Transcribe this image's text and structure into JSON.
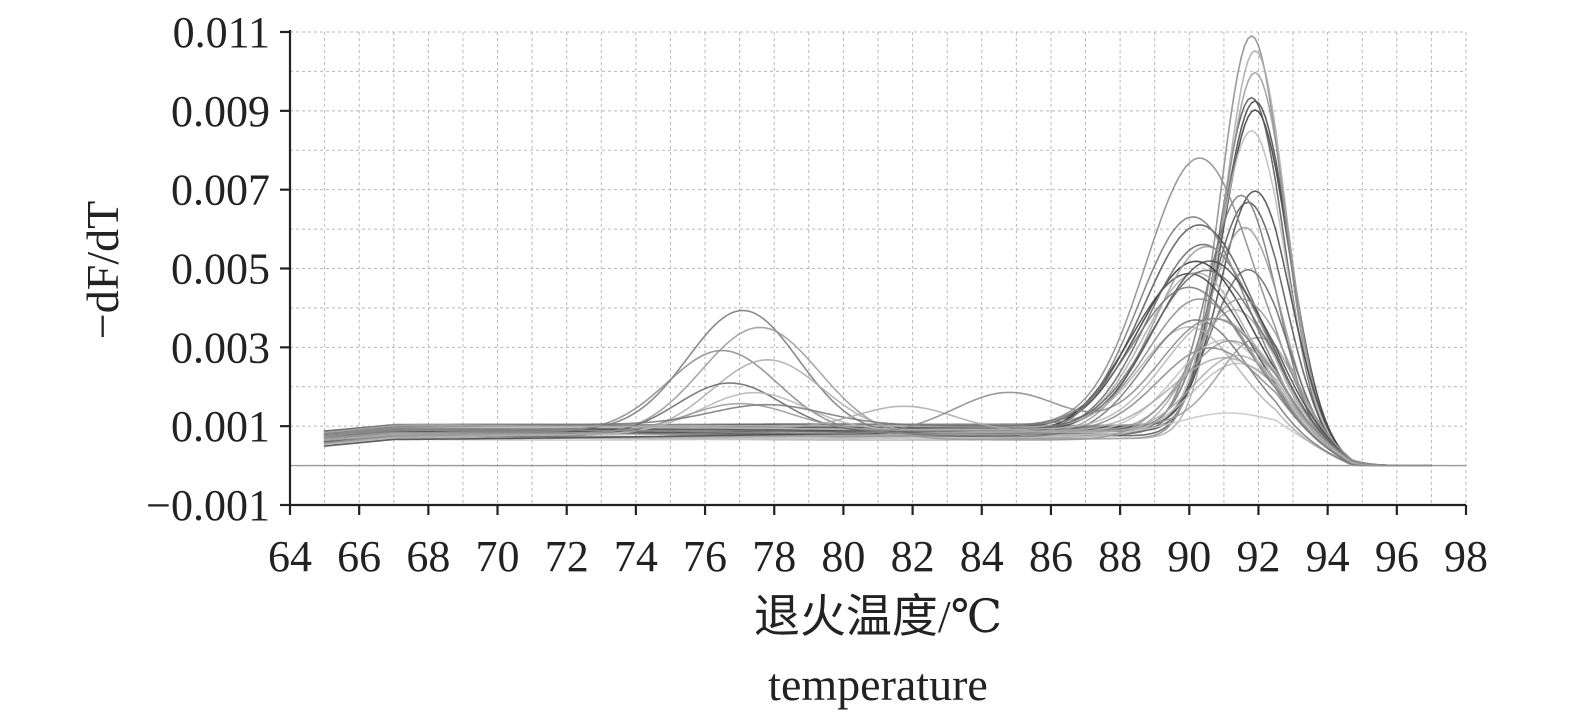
{
  "chart_data": {
    "type": "line",
    "title": "",
    "xlabel_line1": "退火温度/℃",
    "xlabel_line2": "temperature",
    "ylabel": "−dF/dT",
    "xlim": [
      64,
      98
    ],
    "ylim": [
      -0.001,
      0.011
    ],
    "x_ticks": [
      "64",
      "66",
      "68",
      "70",
      "72",
      "74",
      "76",
      "78",
      "80",
      "82",
      "84",
      "86",
      "88",
      "90",
      "92",
      "94",
      "96",
      "98"
    ],
    "y_ticks": [
      "−0.001",
      "0.001",
      "0.003",
      "0.005",
      "0.007",
      "0.009",
      "0.011"
    ],
    "grid": true,
    "baseline_y": 0,
    "x_range_data": [
      65,
      97
    ],
    "series": [
      {
        "color": "#444444",
        "peaks": [
          {
            "c": 91.9,
            "a": 0.0083,
            "w": 0.95
          }
        ]
      },
      {
        "color": "#3a3a3a",
        "peaks": [
          {
            "c": 91.9,
            "a": 0.0082,
            "w": 0.95
          }
        ]
      },
      {
        "color": "#555555",
        "peaks": [
          {
            "c": 91.8,
            "a": 0.0086,
            "w": 0.92
          }
        ]
      },
      {
        "color": "#888888",
        "peaks": [
          {
            "c": 91.8,
            "a": 0.0102,
            "w": 0.9
          }
        ]
      },
      {
        "color": "#aaaaaa",
        "peaks": [
          {
            "c": 91.9,
            "a": 0.0098,
            "w": 0.88
          }
        ]
      },
      {
        "color": "#999999",
        "peaks": [
          {
            "c": 91.9,
            "a": 0.009,
            "w": 0.9
          }
        ]
      },
      {
        "color": "#bbbbbb",
        "peaks": [
          {
            "c": 91.8,
            "a": 0.0075,
            "w": 0.95
          }
        ]
      },
      {
        "color": "#444444",
        "peaks": [
          {
            "c": 91.9,
            "a": 0.006,
            "w": 1.0
          }
        ]
      },
      {
        "color": "#555555",
        "peaks": [
          {
            "c": 91.7,
            "a": 0.0058,
            "w": 1.05
          }
        ]
      },
      {
        "color": "#777777",
        "peaks": [
          {
            "c": 91.5,
            "a": 0.0061,
            "w": 1.0
          }
        ]
      },
      {
        "color": "#999999",
        "peaks": [
          {
            "c": 91.6,
            "a": 0.0052,
            "w": 1.05
          }
        ]
      },
      {
        "color": "#666666",
        "peaks": [
          {
            "c": 91.7,
            "a": 0.0042,
            "w": 1.1
          }
        ]
      },
      {
        "color": "#aaaaaa",
        "peaks": [
          {
            "c": 91.3,
            "a": 0.0032,
            "w": 1.2
          }
        ]
      },
      {
        "color": "#bbbbbb",
        "peaks": [
          {
            "c": 91.4,
            "a": 0.0018,
            "w": 1.3
          }
        ]
      },
      {
        "color": "#c4c4c4",
        "peaks": [
          {
            "c": 91.1,
            "a": 0.0005,
            "w": 1.4
          }
        ]
      },
      {
        "color": "#999999",
        "peaks": [
          {
            "c": 92.0,
            "a": 0.0022,
            "w": 1.1
          }
        ]
      },
      {
        "color": "#888888",
        "peaks": [
          {
            "c": 90.3,
            "a": 0.0068,
            "w": 1.55
          }
        ]
      },
      {
        "color": "#555555",
        "peaks": [
          {
            "c": 90.3,
            "a": 0.0052,
            "w": 1.6
          }
        ]
      },
      {
        "color": "#333333",
        "peaks": [
          {
            "c": 90.2,
            "a": 0.0044,
            "w": 1.65
          }
        ]
      },
      {
        "color": "#444444",
        "peaks": [
          {
            "c": 90.0,
            "a": 0.0042,
            "w": 1.7
          }
        ]
      },
      {
        "color": "#666666",
        "peaks": [
          {
            "c": 90.4,
            "a": 0.0048,
            "w": 1.6
          }
        ]
      },
      {
        "color": "#777777",
        "peaks": [
          {
            "c": 90.1,
            "a": 0.0055,
            "w": 1.55
          }
        ]
      },
      {
        "color": "#999999",
        "peaks": [
          {
            "c": 90.5,
            "a": 0.0047,
            "w": 1.5
          }
        ]
      },
      {
        "color": "#aaaaaa",
        "peaks": [
          {
            "c": 90.2,
            "a": 0.004,
            "w": 1.5
          }
        ]
      },
      {
        "color": "#4a4a4a",
        "peaks": [
          {
            "c": 90.6,
            "a": 0.0043,
            "w": 1.6
          }
        ]
      },
      {
        "color": "#8a8a8a",
        "peaks": [
          {
            "c": 90.3,
            "a": 0.0032,
            "w": 1.45
          }
        ]
      },
      {
        "color": "#b0b0b0",
        "peaks": [
          {
            "c": 90.0,
            "a": 0.0026,
            "w": 1.4
          }
        ]
      },
      {
        "color": "#c0c0c0",
        "peaks": [
          {
            "c": 91.0,
            "a": 0.0024,
            "w": 1.4
          }
        ]
      },
      {
        "color": "#777777",
        "peaks": [
          {
            "c": 77.1,
            "a": 0.0031,
            "w": 1.6
          },
          {
            "c": 90.2,
            "a": 0.003,
            "w": 1.5
          }
        ]
      },
      {
        "color": "#999999",
        "peaks": [
          {
            "c": 77.6,
            "a": 0.0028,
            "w": 1.7
          },
          {
            "c": 91.2,
            "a": 0.0025,
            "w": 1.4
          }
        ]
      },
      {
        "color": "#888888",
        "peaks": [
          {
            "c": 76.5,
            "a": 0.0021,
            "w": 1.6
          },
          {
            "c": 90.6,
            "a": 0.0021,
            "w": 1.5
          }
        ]
      },
      {
        "color": "#aaaaaa",
        "peaks": [
          {
            "c": 77.8,
            "a": 0.0019,
            "w": 1.6
          },
          {
            "c": 91.0,
            "a": 0.0018,
            "w": 1.5
          }
        ]
      },
      {
        "color": "#666666",
        "peaks": [
          {
            "c": 76.7,
            "a": 0.0013,
            "w": 1.5
          },
          {
            "c": 90.5,
            "a": 0.004,
            "w": 1.6
          }
        ]
      },
      {
        "color": "#b5b5b5",
        "peaks": [
          {
            "c": 77.4,
            "a": 0.001,
            "w": 1.5
          },
          {
            "c": 90.8,
            "a": 0.0028,
            "w": 1.5
          }
        ]
      },
      {
        "color": "#999999",
        "peaks": [
          {
            "c": 77.0,
            "a": 0.0007,
            "w": 1.5
          },
          {
            "c": 91.5,
            "a": 0.0034,
            "w": 1.3
          }
        ]
      },
      {
        "color": "#777777",
        "peaks": [
          {
            "c": 77.8,
            "a": 0.0005,
            "w": 1.6
          },
          {
            "c": 90.0,
            "a": 0.0036,
            "w": 1.6
          }
        ]
      },
      {
        "color": "#aaaaaa",
        "peaks": [
          {
            "c": 81.8,
            "a": 0.0006,
            "w": 1.4
          },
          {
            "c": 91.4,
            "a": 0.002,
            "w": 1.3
          }
        ]
      },
      {
        "color": "#888888",
        "peaks": [
          {
            "c": 84.8,
            "a": 0.0011,
            "w": 1.6
          },
          {
            "c": 90.7,
            "a": 0.003,
            "w": 1.6
          }
        ]
      }
    ]
  }
}
